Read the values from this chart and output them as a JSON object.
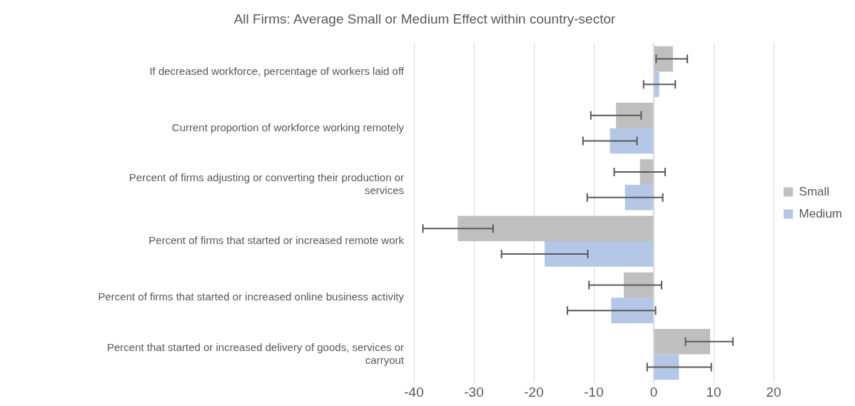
{
  "chart_data": {
    "type": "bar",
    "orientation": "horizontal",
    "title": "All Firms: Average Small or Medium Effect within country-sector",
    "categories": [
      "If decreased workforce, percentage of workers laid off",
      "Current proportion of workforce working remotely",
      "Percent of firms adjusting or converting their production or services",
      "Percent of firms that started or increased remote work",
      "Percent of firms that started or increased online business activity",
      "Percent that started or increased delivery of goods, services or carryout"
    ],
    "series": [
      {
        "name": "Small",
        "color": "#bfbfbf",
        "values": [
          3.2,
          -6.3,
          -2.3,
          -32.7,
          -5.0,
          9.4
        ],
        "errors": [
          [
            0.4,
            5.6
          ],
          [
            -10.5,
            -2.1
          ],
          [
            -6.6,
            1.9
          ],
          [
            -38.5,
            -26.8
          ],
          [
            -10.8,
            1.3
          ],
          [
            5.3,
            13.2
          ]
        ]
      },
      {
        "name": "Medium",
        "color": "#b4c7e7",
        "values": [
          0.9,
          -7.3,
          -4.8,
          -18.2,
          -7.1,
          4.2
        ],
        "errors": [
          [
            -1.7,
            3.6
          ],
          [
            -11.8,
            -2.8
          ],
          [
            -11.1,
            1.5
          ],
          [
            -25.4,
            -11.0
          ],
          [
            -14.4,
            0.3
          ],
          [
            -1.1,
            9.6
          ]
        ]
      }
    ],
    "xlim": [
      -40,
      20
    ],
    "xticks": [
      -40,
      -30,
      -20,
      -10,
      0,
      10,
      20
    ],
    "grid": "x",
    "legend": "right"
  }
}
